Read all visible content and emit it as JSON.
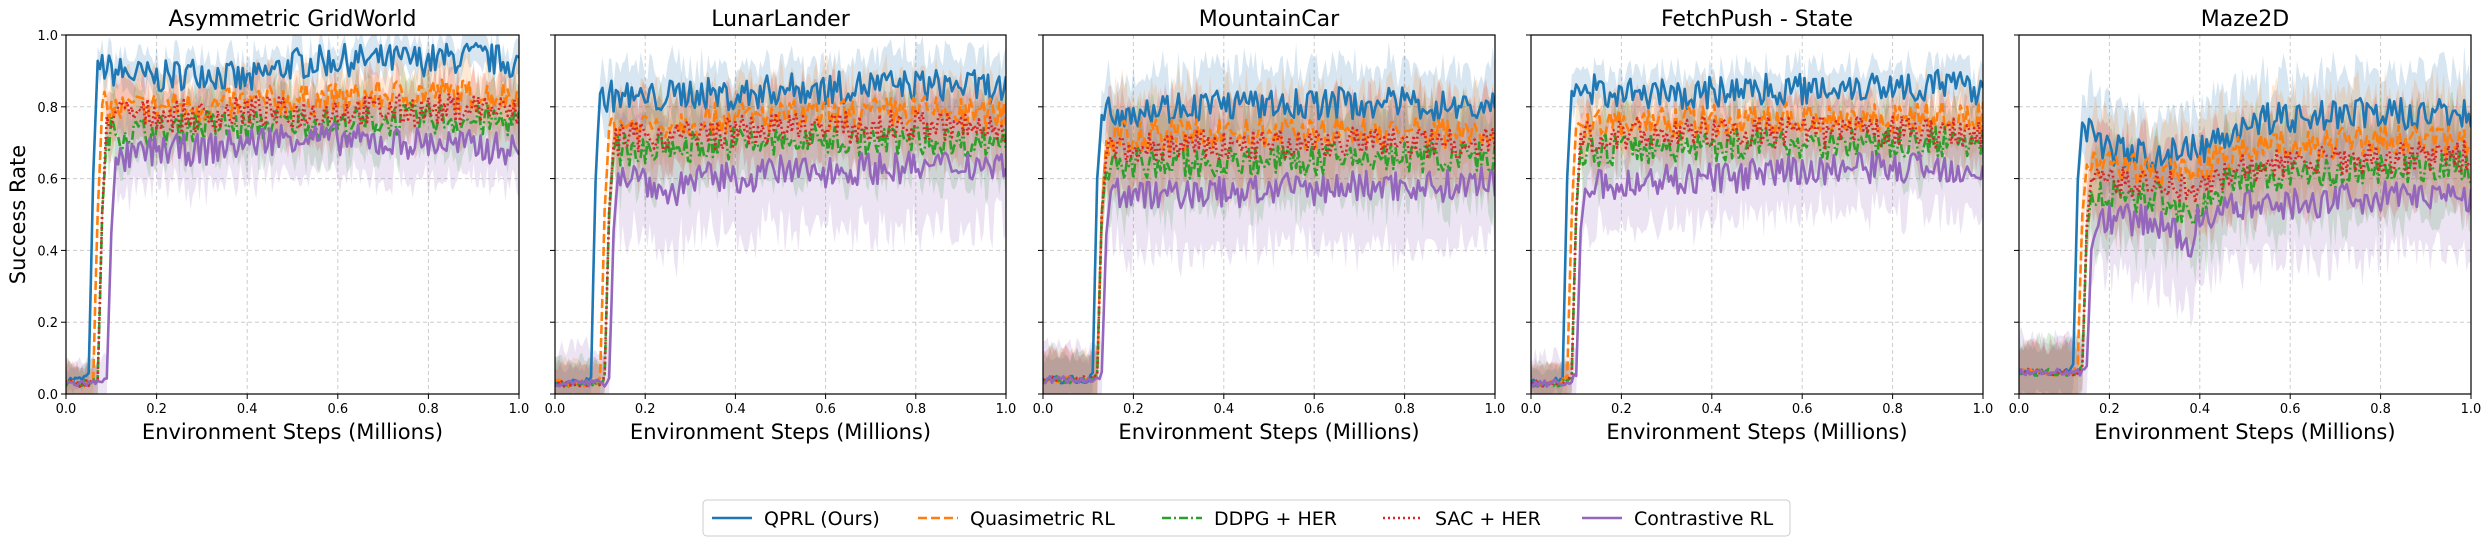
{
  "chart_data": [
    {
      "type": "line",
      "title": "Asymmetric GridWorld",
      "xlabel": "Environment Steps (Millions)",
      "ylabel": "Success Rate",
      "xlim": [
        0,
        1
      ],
      "ylim": [
        0,
        1
      ],
      "xticks": [
        "0.0",
        "0.2",
        "0.4",
        "0.6",
        "0.8",
        "1.0"
      ],
      "yticks": [
        "0.0",
        "0.2",
        "0.4",
        "0.6",
        "0.8",
        "1.0"
      ],
      "grid": true,
      "series": [
        {
          "name": "QPRL (Ours)",
          "x": [
            0,
            0.03,
            0.05,
            0.06,
            0.07,
            0.1,
            0.2,
            0.3,
            0.4,
            0.5,
            0.6,
            0.7,
            0.8,
            0.9,
            1.0
          ],
          "y": [
            0.04,
            0.04,
            0.05,
            0.6,
            0.92,
            0.9,
            0.88,
            0.9,
            0.87,
            0.92,
            0.93,
            0.93,
            0.93,
            0.94,
            0.92
          ],
          "band": 0.05
        },
        {
          "name": "Quasimetric RL",
          "x": [
            0,
            0.04,
            0.06,
            0.07,
            0.08,
            0.1,
            0.2,
            0.3,
            0.4,
            0.5,
            0.6,
            0.7,
            0.8,
            0.9,
            1.0
          ],
          "y": [
            0.03,
            0.03,
            0.04,
            0.5,
            0.8,
            0.79,
            0.8,
            0.8,
            0.81,
            0.82,
            0.82,
            0.83,
            0.84,
            0.83,
            0.83
          ],
          "band": 0.08
        },
        {
          "name": "DDPG + HER",
          "x": [
            0,
            0.05,
            0.07,
            0.08,
            0.09,
            0.1,
            0.2,
            0.3,
            0.4,
            0.5,
            0.6,
            0.7,
            0.8,
            0.9,
            1.0
          ],
          "y": [
            0.03,
            0.03,
            0.04,
            0.5,
            0.72,
            0.73,
            0.73,
            0.75,
            0.74,
            0.76,
            0.75,
            0.76,
            0.77,
            0.76,
            0.76
          ],
          "band": 0.09
        },
        {
          "name": "SAC + HER",
          "x": [
            0,
            0.05,
            0.07,
            0.08,
            0.09,
            0.1,
            0.2,
            0.3,
            0.4,
            0.5,
            0.6,
            0.7,
            0.8,
            0.9,
            1.0
          ],
          "y": [
            0.03,
            0.03,
            0.04,
            0.5,
            0.77,
            0.78,
            0.78,
            0.77,
            0.79,
            0.78,
            0.79,
            0.79,
            0.79,
            0.8,
            0.78
          ],
          "band": 0.08
        },
        {
          "name": "Contrastive RL",
          "x": [
            0,
            0.07,
            0.09,
            0.1,
            0.11,
            0.15,
            0.2,
            0.3,
            0.4,
            0.5,
            0.6,
            0.7,
            0.8,
            0.9,
            1.0
          ],
          "y": [
            0.03,
            0.03,
            0.05,
            0.45,
            0.65,
            0.66,
            0.68,
            0.68,
            0.7,
            0.72,
            0.71,
            0.7,
            0.7,
            0.69,
            0.68
          ],
          "band": 0.1
        }
      ]
    },
    {
      "type": "line",
      "title": "LunarLander",
      "xlabel": "Environment Steps (Millions)",
      "ylabel": "",
      "xlim": [
        0,
        1
      ],
      "ylim": [
        0,
        1
      ],
      "xticks": [
        "0.0",
        "0.2",
        "0.4",
        "0.6",
        "0.8",
        "1.0"
      ],
      "yticks": [],
      "grid": true,
      "series": [
        {
          "name": "QPRL (Ours)",
          "x": [
            0,
            0.06,
            0.08,
            0.09,
            0.1,
            0.15,
            0.2,
            0.3,
            0.4,
            0.5,
            0.6,
            0.7,
            0.8,
            0.9,
            1.0
          ],
          "y": [
            0.03,
            0.03,
            0.05,
            0.6,
            0.83,
            0.83,
            0.82,
            0.84,
            0.83,
            0.85,
            0.85,
            0.86,
            0.86,
            0.86,
            0.85
          ],
          "band": 0.08
        },
        {
          "name": "Quasimetric RL",
          "x": [
            0,
            0.09,
            0.1,
            0.11,
            0.12,
            0.15,
            0.2,
            0.3,
            0.4,
            0.5,
            0.6,
            0.7,
            0.8,
            0.9,
            1.0
          ],
          "y": [
            0.03,
            0.03,
            0.05,
            0.5,
            0.74,
            0.75,
            0.75,
            0.76,
            0.77,
            0.77,
            0.78,
            0.78,
            0.79,
            0.78,
            0.78
          ],
          "band": 0.1
        },
        {
          "name": "DDPG + HER",
          "x": [
            0,
            0.1,
            0.11,
            0.12,
            0.13,
            0.15,
            0.2,
            0.3,
            0.4,
            0.5,
            0.6,
            0.7,
            0.8,
            0.9,
            1.0
          ],
          "y": [
            0.03,
            0.03,
            0.05,
            0.5,
            0.67,
            0.68,
            0.68,
            0.69,
            0.7,
            0.7,
            0.71,
            0.7,
            0.71,
            0.7,
            0.71
          ],
          "band": 0.11
        },
        {
          "name": "SAC + HER",
          "x": [
            0,
            0.1,
            0.11,
            0.12,
            0.13,
            0.15,
            0.2,
            0.3,
            0.4,
            0.5,
            0.6,
            0.7,
            0.8,
            0.9,
            1.0
          ],
          "y": [
            0.03,
            0.03,
            0.05,
            0.5,
            0.7,
            0.71,
            0.72,
            0.72,
            0.73,
            0.74,
            0.74,
            0.74,
            0.75,
            0.74,
            0.74
          ],
          "band": 0.1
        },
        {
          "name": "Contrastive RL",
          "x": [
            0,
            0.11,
            0.12,
            0.13,
            0.14,
            0.2,
            0.25,
            0.3,
            0.4,
            0.5,
            0.6,
            0.7,
            0.8,
            0.9,
            1.0
          ],
          "y": [
            0.03,
            0.03,
            0.05,
            0.45,
            0.62,
            0.6,
            0.55,
            0.6,
            0.6,
            0.62,
            0.62,
            0.63,
            0.63,
            0.64,
            0.64
          ],
          "band": 0.16
        }
      ]
    },
    {
      "type": "line",
      "title": "MountainCar",
      "xlabel": "Environment Steps (Millions)",
      "ylabel": "",
      "xlim": [
        0,
        1
      ],
      "ylim": [
        0,
        1
      ],
      "xticks": [
        "0.0",
        "0.2",
        "0.4",
        "0.6",
        "0.8",
        "1.0"
      ],
      "yticks": [],
      "grid": true,
      "series": [
        {
          "name": "QPRL (Ours)",
          "x": [
            0,
            0.1,
            0.11,
            0.12,
            0.13,
            0.15,
            0.2,
            0.3,
            0.4,
            0.5,
            0.6,
            0.7,
            0.8,
            0.9,
            1.0
          ],
          "y": [
            0.04,
            0.04,
            0.06,
            0.6,
            0.78,
            0.79,
            0.79,
            0.8,
            0.81,
            0.8,
            0.81,
            0.81,
            0.81,
            0.8,
            0.8
          ],
          "band": 0.1
        },
        {
          "name": "Quasimetric RL",
          "x": [
            0,
            0.11,
            0.12,
            0.13,
            0.14,
            0.15,
            0.2,
            0.3,
            0.4,
            0.5,
            0.6,
            0.7,
            0.8,
            0.9,
            1.0
          ],
          "y": [
            0.04,
            0.04,
            0.06,
            0.5,
            0.7,
            0.71,
            0.72,
            0.72,
            0.73,
            0.72,
            0.73,
            0.73,
            0.73,
            0.73,
            0.73
          ],
          "band": 0.12
        },
        {
          "name": "DDPG + HER",
          "x": [
            0,
            0.11,
            0.12,
            0.13,
            0.14,
            0.15,
            0.2,
            0.3,
            0.4,
            0.5,
            0.6,
            0.7,
            0.8,
            0.9,
            1.0
          ],
          "y": [
            0.04,
            0.04,
            0.06,
            0.5,
            0.63,
            0.63,
            0.64,
            0.64,
            0.65,
            0.65,
            0.65,
            0.66,
            0.66,
            0.66,
            0.66
          ],
          "band": 0.13
        },
        {
          "name": "SAC + HER",
          "x": [
            0,
            0.11,
            0.12,
            0.13,
            0.14,
            0.15,
            0.2,
            0.3,
            0.4,
            0.5,
            0.6,
            0.7,
            0.8,
            0.9,
            1.0
          ],
          "y": [
            0.04,
            0.04,
            0.06,
            0.5,
            0.67,
            0.68,
            0.68,
            0.69,
            0.69,
            0.69,
            0.7,
            0.7,
            0.7,
            0.7,
            0.7
          ],
          "band": 0.12
        },
        {
          "name": "Contrastive RL",
          "x": [
            0,
            0.12,
            0.13,
            0.14,
            0.15,
            0.2,
            0.25,
            0.3,
            0.4,
            0.5,
            0.6,
            0.7,
            0.8,
            0.9,
            1.0
          ],
          "y": [
            0.04,
            0.04,
            0.06,
            0.45,
            0.56,
            0.56,
            0.55,
            0.56,
            0.56,
            0.57,
            0.57,
            0.58,
            0.58,
            0.58,
            0.59
          ],
          "band": 0.16
        }
      ]
    },
    {
      "type": "line",
      "title": "FetchPush - State",
      "xlabel": "Environment Steps (Millions)",
      "ylabel": "",
      "xlim": [
        0,
        1
      ],
      "ylim": [
        0,
        1
      ],
      "xticks": [
        "0.0",
        "0.2",
        "0.4",
        "0.6",
        "0.8",
        "1.0"
      ],
      "yticks": [],
      "grid": true,
      "series": [
        {
          "name": "QPRL (Ours)",
          "x": [
            0,
            0.05,
            0.07,
            0.08,
            0.09,
            0.1,
            0.2,
            0.3,
            0.4,
            0.5,
            0.6,
            0.7,
            0.8,
            0.9,
            1.0
          ],
          "y": [
            0.03,
            0.03,
            0.05,
            0.6,
            0.84,
            0.85,
            0.84,
            0.83,
            0.84,
            0.85,
            0.85,
            0.86,
            0.86,
            0.86,
            0.85
          ],
          "band": 0.06
        },
        {
          "name": "Quasimetric RL",
          "x": [
            0,
            0.06,
            0.08,
            0.09,
            0.1,
            0.12,
            0.2,
            0.3,
            0.4,
            0.5,
            0.6,
            0.7,
            0.8,
            0.9,
            1.0
          ],
          "y": [
            0.03,
            0.03,
            0.05,
            0.5,
            0.76,
            0.75,
            0.75,
            0.76,
            0.76,
            0.76,
            0.77,
            0.77,
            0.77,
            0.77,
            0.77
          ],
          "band": 0.08
        },
        {
          "name": "DDPG + HER",
          "x": [
            0,
            0.07,
            0.09,
            0.1,
            0.11,
            0.12,
            0.2,
            0.3,
            0.4,
            0.5,
            0.6,
            0.7,
            0.8,
            0.9,
            1.0
          ],
          "y": [
            0.03,
            0.03,
            0.05,
            0.5,
            0.68,
            0.68,
            0.68,
            0.69,
            0.69,
            0.7,
            0.7,
            0.7,
            0.7,
            0.7,
            0.7
          ],
          "band": 0.09
        },
        {
          "name": "SAC + HER",
          "x": [
            0,
            0.07,
            0.09,
            0.1,
            0.11,
            0.12,
            0.2,
            0.3,
            0.4,
            0.5,
            0.6,
            0.7,
            0.8,
            0.9,
            1.0
          ],
          "y": [
            0.03,
            0.03,
            0.05,
            0.5,
            0.72,
            0.72,
            0.72,
            0.73,
            0.73,
            0.73,
            0.73,
            0.73,
            0.73,
            0.73,
            0.73
          ],
          "band": 0.08
        },
        {
          "name": "Contrastive RL",
          "x": [
            0,
            0.08,
            0.1,
            0.11,
            0.12,
            0.15,
            0.2,
            0.3,
            0.4,
            0.5,
            0.6,
            0.7,
            0.8,
            0.9,
            1.0
          ],
          "y": [
            0.03,
            0.03,
            0.05,
            0.45,
            0.58,
            0.58,
            0.58,
            0.6,
            0.6,
            0.61,
            0.62,
            0.63,
            0.63,
            0.63,
            0.63
          ],
          "band": 0.12
        }
      ]
    },
    {
      "type": "line",
      "title": "Maze2D",
      "xlabel": "Environment Steps (Millions)",
      "ylabel": "",
      "xlim": [
        0,
        1
      ],
      "ylim": [
        0,
        1
      ],
      "xticks": [
        "0.0",
        "0.2",
        "0.4",
        "0.6",
        "0.8",
        "1.0"
      ],
      "yticks": [],
      "grid": true,
      "series": [
        {
          "name": "QPRL (Ours)",
          "x": [
            0,
            0.11,
            0.12,
            0.13,
            0.14,
            0.2,
            0.3,
            0.4,
            0.45,
            0.5,
            0.6,
            0.7,
            0.8,
            0.9,
            1.0
          ],
          "y": [
            0.06,
            0.06,
            0.08,
            0.6,
            0.76,
            0.68,
            0.66,
            0.68,
            0.72,
            0.76,
            0.77,
            0.78,
            0.78,
            0.78,
            0.78
          ],
          "band": 0.12
        },
        {
          "name": "Quasimetric RL",
          "x": [
            0,
            0.12,
            0.13,
            0.14,
            0.15,
            0.2,
            0.3,
            0.4,
            0.45,
            0.5,
            0.6,
            0.7,
            0.8,
            0.9,
            1.0
          ],
          "y": [
            0.06,
            0.06,
            0.08,
            0.5,
            0.64,
            0.63,
            0.62,
            0.63,
            0.66,
            0.68,
            0.69,
            0.7,
            0.71,
            0.7,
            0.7
          ],
          "band": 0.13
        },
        {
          "name": "DDPG + HER",
          "x": [
            0,
            0.13,
            0.14,
            0.15,
            0.16,
            0.2,
            0.3,
            0.4,
            0.45,
            0.5,
            0.6,
            0.7,
            0.8,
            0.9,
            1.0
          ],
          "y": [
            0.06,
            0.06,
            0.08,
            0.45,
            0.56,
            0.55,
            0.55,
            0.5,
            0.58,
            0.6,
            0.61,
            0.62,
            0.63,
            0.63,
            0.63
          ],
          "band": 0.14
        },
        {
          "name": "SAC + HER",
          "x": [
            0,
            0.13,
            0.14,
            0.15,
            0.16,
            0.2,
            0.3,
            0.4,
            0.45,
            0.5,
            0.6,
            0.7,
            0.8,
            0.9,
            1.0
          ],
          "y": [
            0.06,
            0.06,
            0.08,
            0.48,
            0.6,
            0.59,
            0.59,
            0.57,
            0.6,
            0.63,
            0.64,
            0.65,
            0.66,
            0.66,
            0.66
          ],
          "band": 0.13
        },
        {
          "name": "Contrastive RL",
          "x": [
            0,
            0.14,
            0.15,
            0.16,
            0.18,
            0.2,
            0.3,
            0.38,
            0.4,
            0.5,
            0.6,
            0.7,
            0.8,
            0.9,
            1.0
          ],
          "y": [
            0.06,
            0.06,
            0.08,
            0.4,
            0.5,
            0.49,
            0.48,
            0.42,
            0.5,
            0.52,
            0.53,
            0.54,
            0.55,
            0.55,
            0.55
          ],
          "band": 0.16
        }
      ]
    }
  ],
  "legend": {
    "placement": "bottom-center",
    "items": [
      {
        "label": "QPRL (Ours)",
        "color": "#1f77b4",
        "style": "solid"
      },
      {
        "label": "Quasimetric RL",
        "color": "#ff7f0e",
        "style": "dashed"
      },
      {
        "label": "DDPG + HER",
        "color": "#2ca02c",
        "style": "dashdot"
      },
      {
        "label": "SAC + HER",
        "color": "#d62728",
        "style": "dotted"
      },
      {
        "label": "Contrastive RL",
        "color": "#9467bd",
        "style": "solid"
      }
    ]
  }
}
